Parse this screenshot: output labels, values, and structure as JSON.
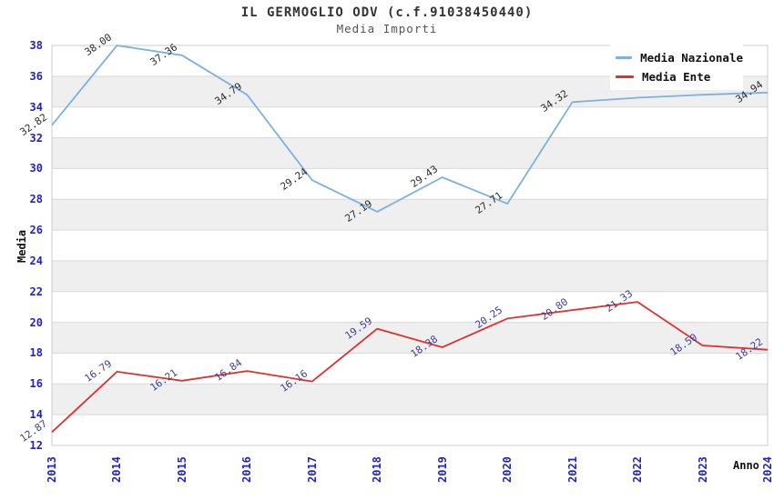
{
  "chart_data": {
    "type": "line",
    "title": "IL GERMOGLIO ODV (c.f.91038450440)",
    "subtitle": "Media Importi",
    "xlabel": "Anno",
    "ylabel": "Media",
    "categories": [
      "2013",
      "2014",
      "2015",
      "2016",
      "2017",
      "2018",
      "2019",
      "2020",
      "2021",
      "2022",
      "2023",
      "2024"
    ],
    "ylim": [
      12,
      38
    ],
    "ytick_step": 2,
    "grid": "horizontal-bands",
    "legend_position": "top-right",
    "colors": {
      "tick_label": "#2222cc",
      "band": "#efefef",
      "gridline": "#d9d9d9",
      "plot_border": "#cccccc"
    },
    "series": [
      {
        "name": "Media Nazionale",
        "color": "#7cb0e3",
        "label_color": "#2b2b2b",
        "values": [
          32.82,
          38.0,
          37.36,
          34.79,
          29.24,
          27.19,
          29.43,
          27.71,
          34.32,
          34.6,
          34.8,
          34.94
        ],
        "labels": [
          "32.82",
          "38.00",
          "37.36",
          "34.79",
          "29.24",
          "27.19",
          "29.43",
          "27.71",
          "34.32",
          "",
          "",
          "34.94"
        ]
      },
      {
        "name": "Media Ente",
        "color": "#e23030",
        "label_color": "#3f3f8f",
        "values": [
          12.87,
          16.79,
          16.21,
          16.84,
          16.16,
          19.59,
          18.38,
          20.25,
          20.8,
          21.33,
          18.5,
          18.22
        ],
        "labels": [
          "12.87",
          "16.79",
          "16.21",
          "16.84",
          "16.16",
          "19.59",
          "18.38",
          "20.25",
          "20.80",
          "21.33",
          "18.50",
          "18.22"
        ]
      }
    ]
  }
}
